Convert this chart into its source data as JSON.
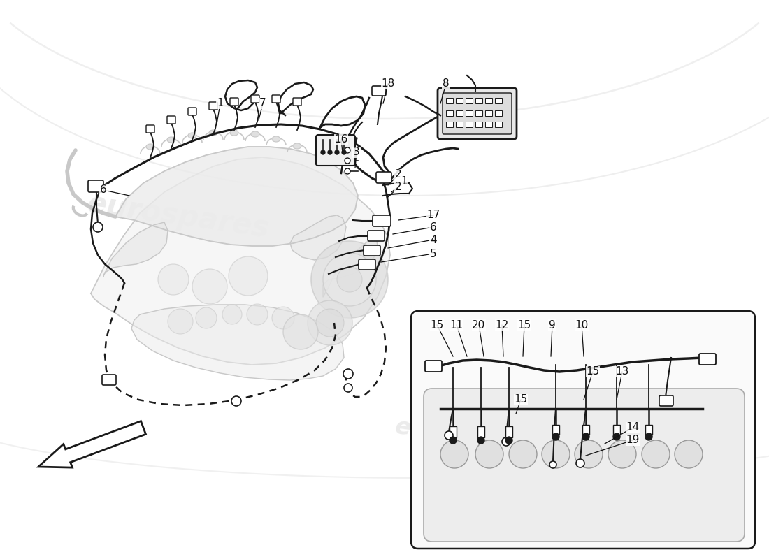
{
  "bg_color": "#ffffff",
  "engine_line_color": "#c8c8c8",
  "wire_color": "#1a1a1a",
  "label_color": "#111111",
  "watermark_color": "#cccccc",
  "figsize": [
    11.0,
    8.0
  ],
  "dpi": 100,
  "callouts_main": [
    [
      "1",
      310,
      178,
      315,
      148
    ],
    [
      "7",
      370,
      172,
      376,
      148
    ],
    [
      "18",
      548,
      148,
      555,
      120
    ],
    [
      "8",
      630,
      148,
      638,
      120
    ],
    [
      "16",
      490,
      218,
      488,
      200
    ],
    [
      "3",
      508,
      240,
      510,
      218
    ],
    [
      "2",
      555,
      265,
      570,
      250
    ],
    [
      "1",
      560,
      275,
      578,
      260
    ],
    [
      "2",
      555,
      282,
      570,
      268
    ],
    [
      "17",
      570,
      315,
      620,
      308
    ],
    [
      "6",
      562,
      335,
      620,
      325
    ],
    [
      "4",
      555,
      355,
      620,
      343
    ],
    [
      "5",
      545,
      375,
      620,
      363
    ],
    [
      "6",
      185,
      280,
      148,
      272
    ]
  ],
  "callouts_inset": [
    [
      "15",
      648,
      510,
      625,
      465
    ],
    [
      "11",
      668,
      510,
      653,
      465
    ],
    [
      "20",
      692,
      510,
      685,
      465
    ],
    [
      "12",
      720,
      510,
      718,
      465
    ],
    [
      "15",
      748,
      510,
      750,
      465
    ],
    [
      "9",
      788,
      510,
      790,
      465
    ],
    [
      "10",
      835,
      510,
      832,
      465
    ],
    [
      "15",
      835,
      572,
      848,
      532
    ],
    [
      "13",
      882,
      572,
      890,
      532
    ],
    [
      "15",
      738,
      592,
      745,
      572
    ],
    [
      "14",
      865,
      635,
      905,
      612
    ],
    [
      "19",
      838,
      652,
      905,
      630
    ]
  ]
}
